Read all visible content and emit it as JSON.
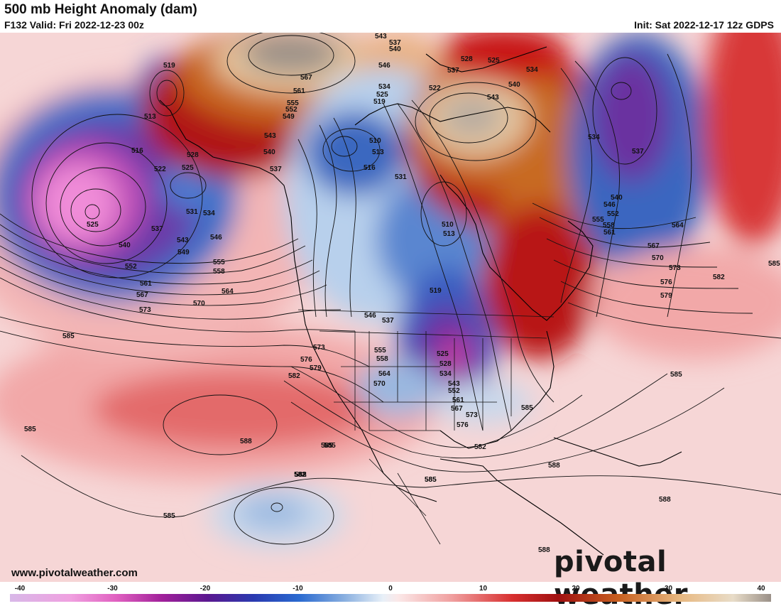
{
  "header": {
    "title": "500 mb Height Anomaly (dam)",
    "valid": "F132 Valid: Fri 2022-12-23 00z",
    "init": "Init: Sat 2022-12-17 12z GDPS"
  },
  "footer": {
    "site": "www.pivotalweather.com",
    "brand": "pivotal weather"
  },
  "colorbar": {
    "ticks": [
      "-40",
      "-30",
      "-20",
      "-10",
      "0",
      "10",
      "20",
      "30",
      "40"
    ],
    "min": -40,
    "max": 40
  },
  "contour_labels": [
    "519",
    "513",
    "516",
    "522",
    "525",
    "528",
    "531",
    "534",
    "525",
    "537",
    "540",
    "543",
    "546",
    "549",
    "552",
    "555",
    "558",
    "561",
    "564",
    "567",
    "570",
    "573",
    "576",
    "579",
    "582",
    "585",
    "588",
    "543",
    "537",
    "540",
    "546",
    "567",
    "561",
    "555",
    "552",
    "549",
    "543",
    "540",
    "537",
    "534",
    "525",
    "519",
    "510",
    "513",
    "516",
    "531",
    "522",
    "528",
    "525",
    "537",
    "534",
    "543",
    "540",
    "510",
    "513",
    "519",
    "525",
    "528",
    "534",
    "543",
    "552",
    "561",
    "567",
    "573",
    "576",
    "546",
    "537",
    "555",
    "558",
    "564",
    "570",
    "573",
    "576",
    "579",
    "582",
    "585",
    "588",
    "585",
    "582",
    "585",
    "588",
    "588",
    "588",
    "534",
    "537",
    "540",
    "546",
    "552",
    "555",
    "558",
    "561",
    "564",
    "567",
    "570",
    "573",
    "576",
    "579",
    "582",
    "585",
    "585",
    "582",
    "585"
  ],
  "colors": {
    "neg_strong": "#e060c0",
    "neg_purple": "#7a2fa8",
    "neg_blue": "#2a5fc0",
    "neg_light": "#c8dcf0",
    "pos_light": "#f8d8d8",
    "pos_red": "#c81818",
    "pos_dark": "#8a1010",
    "pos_orange": "#c86a20",
    "pos_tan": "#e8c8a0",
    "pos_gray": "#9a9088"
  }
}
